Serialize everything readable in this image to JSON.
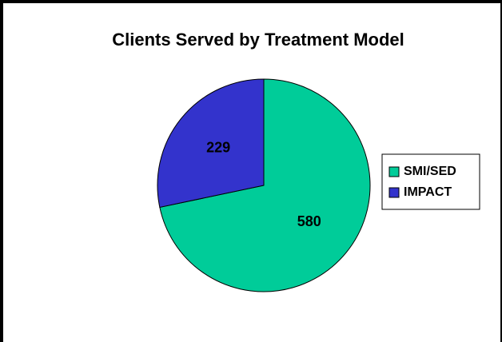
{
  "chart_data": {
    "type": "pie",
    "title": "Clients Served by Treatment Model",
    "categories": [
      "SMI/SED",
      "IMPACT"
    ],
    "values": [
      580,
      229
    ],
    "colors": [
      "#00cc99",
      "#3333cc"
    ],
    "legend": "right",
    "data_labels": true
  }
}
